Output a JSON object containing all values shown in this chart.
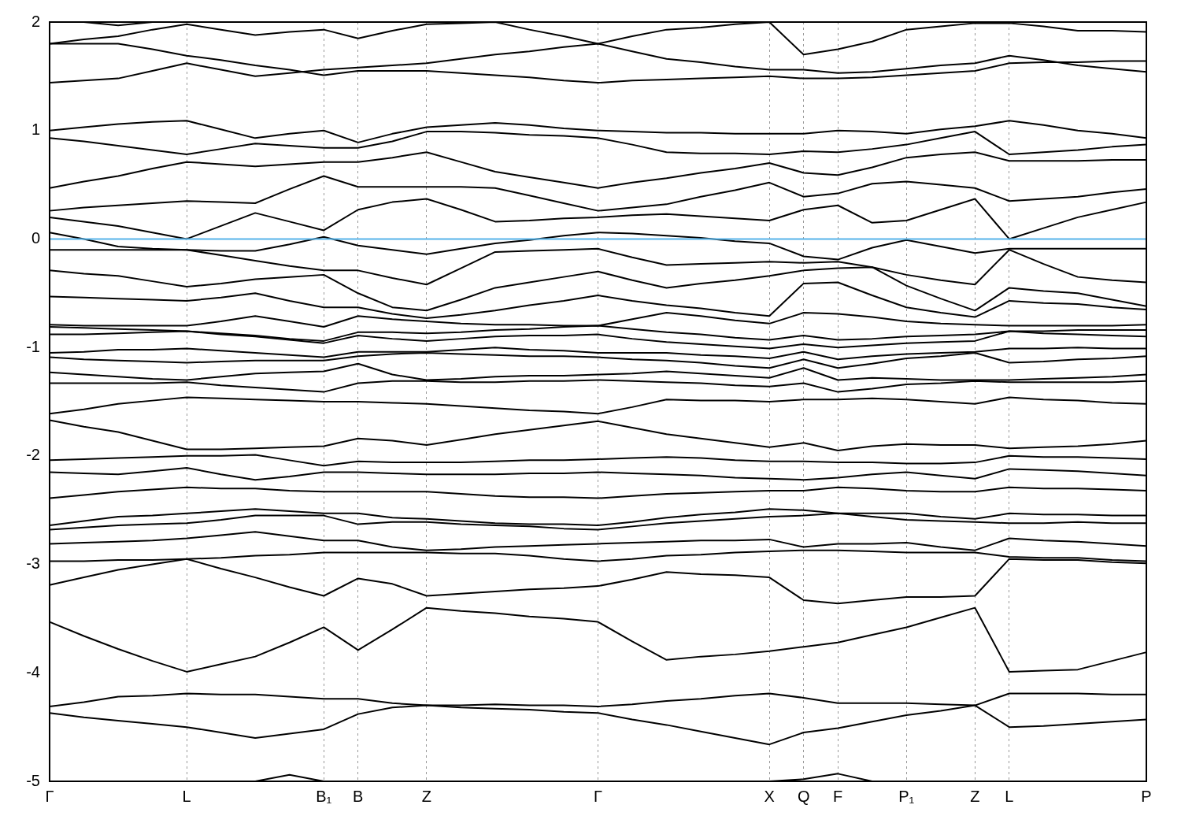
{
  "chart_data": {
    "type": "line",
    "categories": [
      "Γ",
      null,
      null,
      null,
      "L",
      null,
      null,
      null,
      "B₁",
      "B",
      null,
      "Z",
      null,
      null,
      null,
      null,
      "Γ",
      null,
      null,
      null,
      null,
      "X",
      "Q",
      "F",
      null,
      "P₁",
      null,
      "Z",
      "L",
      null,
      null,
      null,
      "P"
    ],
    "ylim": [
      -5,
      2
    ],
    "yticks": [
      -5,
      -4,
      -3,
      -2,
      -1,
      0,
      1,
      2
    ],
    "grid": "x",
    "ref_lines": [
      {
        "axis": "y",
        "value": 0,
        "color": "#56b4e9"
      }
    ],
    "series": [
      {
        "color": "#000000",
        "values": [
          null,
          2.0,
          1.97,
          2.0,
          null,
          null,
          null,
          null,
          null,
          null,
          null,
          null,
          null,
          null,
          null,
          null,
          null,
          null,
          null,
          null,
          null,
          null,
          null,
          null,
          null,
          null,
          null,
          null,
          null,
          null,
          null,
          null,
          null
        ]
      },
      {
        "color": "#000000",
        "values": [
          1.8,
          1.84,
          1.87,
          1.93,
          1.98,
          1.93,
          1.88,
          1.91,
          1.93,
          1.85,
          1.92,
          1.98,
          1.99,
          2.0,
          1.93,
          1.87,
          1.8,
          1.87,
          1.93,
          1.95,
          1.98,
          2.0,
          1.7,
          1.75,
          1.82,
          1.93,
          1.96,
          1.99,
          1.99,
          1.96,
          1.92,
          1.92,
          1.91
        ]
      },
      {
        "color": "#000000",
        "values": [
          1.8,
          1.8,
          1.8,
          1.75,
          1.69,
          1.65,
          1.6,
          1.56,
          1.51,
          1.55,
          1.55,
          1.55,
          1.53,
          1.51,
          1.49,
          1.46,
          1.44,
          1.46,
          1.47,
          1.48,
          1.49,
          1.5,
          1.48,
          1.48,
          1.49,
          1.51,
          1.53,
          1.55,
          1.62,
          1.63,
          1.63,
          1.64,
          1.64
        ]
      },
      {
        "color": "#000000",
        "values": [
          1.44,
          1.46,
          1.48,
          1.55,
          1.62,
          1.56,
          1.5,
          1.53,
          1.56,
          1.58,
          1.6,
          1.62,
          1.66,
          1.7,
          1.73,
          1.77,
          1.8,
          1.73,
          1.66,
          1.63,
          1.59,
          1.56,
          1.56,
          1.53,
          1.54,
          1.57,
          1.6,
          1.62,
          1.69,
          1.65,
          1.6,
          1.57,
          1.54
        ]
      },
      {
        "color": "#000000",
        "values": [
          1.0,
          1.03,
          1.06,
          1.08,
          1.09,
          1.01,
          0.93,
          0.97,
          1.0,
          0.89,
          0.97,
          1.03,
          1.05,
          1.07,
          1.05,
          1.02,
          1.0,
          0.99,
          0.98,
          0.98,
          0.97,
          0.97,
          0.97,
          1.0,
          0.99,
          0.97,
          1.01,
          1.04,
          1.09,
          1.05,
          1.0,
          0.97,
          0.93
        ]
      },
      {
        "color": "#000000",
        "values": [
          0.93,
          0.9,
          0.86,
          0.82,
          0.78,
          0.83,
          0.88,
          0.86,
          0.84,
          0.84,
          0.9,
          0.99,
          0.99,
          0.98,
          0.96,
          0.95,
          0.93,
          0.87,
          0.8,
          0.79,
          0.79,
          0.78,
          0.81,
          0.8,
          0.83,
          0.87,
          0.93,
          0.99,
          0.78,
          0.8,
          0.82,
          0.85,
          0.87
        ]
      },
      {
        "color": "#000000",
        "values": [
          0.47,
          0.53,
          0.58,
          0.65,
          0.71,
          0.69,
          0.67,
          0.69,
          0.71,
          0.71,
          0.75,
          0.8,
          0.71,
          0.62,
          0.57,
          0.52,
          0.47,
          0.52,
          0.56,
          0.61,
          0.65,
          0.7,
          0.61,
          0.59,
          0.66,
          0.75,
          0.78,
          0.8,
          0.72,
          0.72,
          0.72,
          0.73,
          0.73
        ]
      },
      {
        "color": "#000000",
        "values": [
          0.26,
          0.29,
          0.31,
          0.33,
          0.35,
          0.34,
          0.33,
          0.46,
          0.58,
          0.48,
          0.48,
          0.48,
          0.48,
          0.47,
          0.4,
          0.33,
          0.26,
          0.29,
          0.32,
          0.39,
          0.45,
          0.52,
          0.39,
          0.42,
          0.51,
          0.53,
          0.5,
          0.47,
          0.35,
          0.37,
          0.39,
          0.43,
          0.46
        ]
      },
      {
        "color": "#000000",
        "values": [
          0.2,
          0.16,
          0.12,
          0.06,
          0.0,
          0.12,
          0.24,
          0.16,
          0.08,
          0.27,
          0.34,
          0.37,
          0.27,
          0.16,
          0.17,
          0.19,
          0.2,
          0.22,
          0.23,
          0.21,
          0.19,
          0.17,
          0.27,
          0.31,
          0.15,
          0.17,
          0.27,
          0.37,
          0.0,
          0.1,
          0.2,
          0.27,
          0.34
        ]
      },
      {
        "color": "#000000",
        "values": [
          0.06,
          0.0,
          -0.07,
          -0.09,
          -0.1,
          -0.11,
          -0.11,
          -0.05,
          0.02,
          -0.06,
          -0.1,
          -0.14,
          -0.09,
          -0.04,
          -0.01,
          0.03,
          0.06,
          0.05,
          0.03,
          0.01,
          -0.02,
          -0.04,
          -0.16,
          -0.19,
          -0.08,
          -0.01,
          -0.07,
          -0.13,
          -0.09,
          -0.09,
          -0.09,
          -0.09,
          -0.09
        ]
      },
      {
        "color": "#000000",
        "values": [
          -0.1,
          -0.1,
          -0.1,
          -0.1,
          -0.1,
          -0.15,
          -0.2,
          -0.25,
          -0.29,
          -0.29,
          -0.36,
          -0.42,
          -0.27,
          -0.12,
          -0.11,
          -0.1,
          -0.09,
          -0.17,
          -0.24,
          -0.23,
          -0.22,
          -0.21,
          -0.22,
          -0.21,
          -0.26,
          -0.33,
          -0.38,
          -0.42,
          -0.1,
          -0.23,
          -0.35,
          -0.38,
          -0.4
        ]
      },
      {
        "color": "#000000",
        "values": [
          -0.29,
          -0.32,
          -0.34,
          -0.39,
          -0.44,
          -0.41,
          -0.37,
          -0.35,
          -0.33,
          -0.5,
          -0.63,
          -0.66,
          -0.56,
          -0.45,
          -0.4,
          -0.35,
          -0.3,
          -0.38,
          -0.45,
          -0.41,
          -0.38,
          -0.34,
          -0.29,
          -0.27,
          -0.26,
          -0.43,
          -0.55,
          -0.66,
          -0.45,
          -0.48,
          -0.5,
          -0.56,
          -0.62
        ]
      },
      {
        "color": "#000000",
        "values": [
          -0.53,
          -0.54,
          -0.55,
          -0.56,
          -0.57,
          -0.54,
          -0.5,
          -0.57,
          -0.63,
          -0.63,
          -0.69,
          -0.73,
          -0.7,
          -0.66,
          -0.61,
          -0.57,
          -0.52,
          -0.57,
          -0.61,
          -0.64,
          -0.68,
          -0.71,
          -0.41,
          -0.4,
          -0.52,
          -0.63,
          -0.68,
          -0.72,
          -0.57,
          -0.59,
          -0.6,
          -0.63,
          -0.65
        ]
      },
      {
        "color": "#000000",
        "values": [
          -0.79,
          -0.8,
          -0.8,
          -0.8,
          -0.8,
          -0.76,
          -0.71,
          -0.76,
          -0.81,
          -0.71,
          -0.74,
          -0.76,
          -0.78,
          -0.79,
          -0.79,
          -0.8,
          -0.8,
          -0.74,
          -0.68,
          -0.71,
          -0.75,
          -0.78,
          -0.68,
          -0.69,
          -0.72,
          -0.76,
          -0.78,
          -0.79,
          -0.8,
          -0.8,
          -0.8,
          -0.8,
          -0.79
        ]
      },
      {
        "color": "#000000",
        "values": [
          -0.81,
          -0.82,
          -0.83,
          -0.84,
          -0.85,
          -0.87,
          -0.89,
          -0.92,
          -0.94,
          -0.86,
          -0.86,
          -0.87,
          -0.86,
          -0.84,
          -0.83,
          -0.81,
          -0.8,
          -0.83,
          -0.86,
          -0.88,
          -0.91,
          -0.93,
          -0.89,
          -0.93,
          -0.92,
          -0.9,
          -0.89,
          -0.88,
          -0.85,
          -0.85,
          -0.84,
          -0.84,
          -0.84
        ]
      },
      {
        "color": "#000000",
        "values": [
          -0.88,
          -0.88,
          -0.87,
          -0.86,
          -0.85,
          -0.88,
          -0.9,
          -0.93,
          -0.96,
          -0.89,
          -0.92,
          -0.94,
          -0.92,
          -0.9,
          -0.89,
          -0.89,
          -0.88,
          -0.92,
          -0.95,
          -0.97,
          -0.99,
          -1.01,
          -0.97,
          -1.0,
          -0.98,
          -0.96,
          -0.95,
          -0.94,
          -0.85,
          -0.87,
          -0.88,
          -0.89,
          -0.9
        ]
      },
      {
        "color": "#000000",
        "values": [
          -1.05,
          -1.04,
          -1.02,
          -1.02,
          -1.01,
          -1.03,
          -1.05,
          -1.07,
          -1.09,
          -1.04,
          -1.04,
          -1.04,
          -1.02,
          -1.0,
          -1.02,
          -1.03,
          -1.05,
          -1.05,
          -1.05,
          -1.07,
          -1.08,
          -1.1,
          -1.04,
          -1.11,
          -1.08,
          -1.06,
          -1.05,
          -1.04,
          -1.01,
          -1.01,
          -1.0,
          -1.01,
          -1.01
        ]
      },
      {
        "color": "#000000",
        "values": [
          -1.09,
          -1.11,
          -1.12,
          -1.13,
          -1.14,
          -1.13,
          -1.12,
          -1.12,
          -1.12,
          -1.08,
          -1.06,
          -1.05,
          -1.06,
          -1.07,
          -1.08,
          -1.08,
          -1.09,
          -1.11,
          -1.12,
          -1.14,
          -1.17,
          -1.19,
          -1.11,
          -1.19,
          -1.15,
          -1.1,
          -1.08,
          -1.05,
          -1.14,
          -1.13,
          -1.11,
          -1.1,
          -1.08
        ]
      },
      {
        "color": "#000000",
        "values": [
          -1.23,
          -1.25,
          -1.27,
          -1.29,
          -1.3,
          -1.27,
          -1.24,
          -1.23,
          -1.22,
          -1.15,
          -1.25,
          -1.3,
          -1.29,
          -1.27,
          -1.26,
          -1.26,
          -1.25,
          -1.24,
          -1.22,
          -1.24,
          -1.26,
          -1.28,
          -1.19,
          -1.3,
          -1.28,
          -1.29,
          -1.3,
          -1.3,
          -1.3,
          -1.29,
          -1.28,
          -1.27,
          -1.25
        ]
      },
      {
        "color": "#000000",
        "values": [
          -1.33,
          -1.33,
          -1.33,
          -1.33,
          -1.32,
          -1.35,
          -1.37,
          -1.39,
          -1.41,
          -1.33,
          -1.31,
          -1.31,
          -1.32,
          -1.32,
          -1.31,
          -1.31,
          -1.3,
          -1.31,
          -1.32,
          -1.33,
          -1.35,
          -1.36,
          -1.33,
          -1.41,
          -1.38,
          -1.34,
          -1.33,
          -1.31,
          -1.32,
          -1.32,
          -1.32,
          -1.32,
          -1.31
        ]
      },
      {
        "color": "#000000",
        "values": [
          -1.61,
          -1.57,
          -1.52,
          -1.49,
          -1.46,
          -1.47,
          -1.48,
          -1.49,
          -1.5,
          -1.5,
          -1.51,
          -1.52,
          -1.54,
          -1.56,
          -1.58,
          -1.59,
          -1.61,
          -1.55,
          -1.48,
          -1.49,
          -1.49,
          -1.5,
          -1.48,
          -1.48,
          -1.47,
          -1.48,
          -1.5,
          -1.52,
          -1.46,
          -1.48,
          -1.49,
          -1.51,
          -1.52
        ]
      },
      {
        "color": "#000000",
        "values": [
          -1.67,
          -1.73,
          -1.78,
          -1.86,
          -1.94,
          -1.94,
          -1.93,
          -1.92,
          -1.91,
          -1.84,
          -1.86,
          -1.9,
          -1.85,
          -1.8,
          -1.76,
          -1.72,
          -1.68,
          -1.74,
          -1.8,
          -1.84,
          -1.88,
          -1.92,
          -1.88,
          -1.95,
          -1.91,
          -1.89,
          -1.9,
          -1.9,
          -1.93,
          -1.92,
          -1.91,
          -1.89,
          -1.86
        ]
      },
      {
        "color": "#000000",
        "values": [
          -2.04,
          -2.03,
          -2.02,
          -2.01,
          -2.0,
          -2.0,
          -1.99,
          -2.04,
          -2.09,
          -2.05,
          -2.06,
          -2.06,
          -2.06,
          -2.05,
          -2.04,
          -2.04,
          -2.03,
          -2.02,
          -2.01,
          -2.02,
          -2.04,
          -2.05,
          -2.05,
          -2.06,
          -2.06,
          -2.07,
          -2.07,
          -2.06,
          -2.0,
          -2.01,
          -2.01,
          -2.02,
          -2.03
        ]
      },
      {
        "color": "#000000",
        "values": [
          -2.15,
          -2.16,
          -2.17,
          -2.14,
          -2.11,
          -2.17,
          -2.22,
          -2.19,
          -2.15,
          -2.15,
          -2.16,
          -2.17,
          -2.17,
          -2.17,
          -2.16,
          -2.16,
          -2.15,
          -2.16,
          -2.17,
          -2.18,
          -2.2,
          -2.21,
          -2.22,
          -2.2,
          -2.17,
          -2.15,
          -2.18,
          -2.21,
          -2.12,
          -2.13,
          -2.14,
          -2.16,
          -2.18
        ]
      },
      {
        "color": "#000000",
        "values": [
          -2.39,
          -2.36,
          -2.33,
          -2.31,
          -2.29,
          -2.3,
          -2.3,
          -2.32,
          -2.33,
          -2.33,
          -2.33,
          -2.33,
          -2.35,
          -2.37,
          -2.38,
          -2.38,
          -2.39,
          -2.37,
          -2.35,
          -2.34,
          -2.33,
          -2.32,
          -2.32,
          -2.29,
          -2.3,
          -2.32,
          -2.33,
          -2.33,
          -2.29,
          -2.3,
          -2.3,
          -2.31,
          -2.32
        ]
      },
      {
        "color": "#000000",
        "values": [
          -2.64,
          -2.6,
          -2.56,
          -2.55,
          -2.53,
          -2.51,
          -2.49,
          -2.51,
          -2.53,
          -2.53,
          -2.57,
          -2.58,
          -2.6,
          -2.62,
          -2.63,
          -2.63,
          -2.64,
          -2.61,
          -2.57,
          -2.54,
          -2.52,
          -2.49,
          -2.5,
          -2.53,
          -2.53,
          -2.53,
          -2.56,
          -2.58,
          -2.53,
          -2.54,
          -2.54,
          -2.55,
          -2.55
        ]
      },
      {
        "color": "#000000",
        "values": [
          -2.68,
          -2.66,
          -2.64,
          -2.63,
          -2.62,
          -2.59,
          -2.55,
          -2.55,
          -2.55,
          -2.63,
          -2.61,
          -2.61,
          -2.63,
          -2.64,
          -2.65,
          -2.67,
          -2.68,
          -2.65,
          -2.62,
          -2.6,
          -2.58,
          -2.56,
          -2.55,
          -2.53,
          -2.56,
          -2.59,
          -2.6,
          -2.61,
          -2.62,
          -2.62,
          -2.61,
          -2.62,
          -2.62
        ]
      },
      {
        "color": "#000000",
        "values": [
          -2.81,
          -2.8,
          -2.79,
          -2.78,
          -2.76,
          -2.73,
          -2.7,
          -2.74,
          -2.78,
          -2.78,
          -2.84,
          -2.87,
          -2.86,
          -2.84,
          -2.83,
          -2.82,
          -2.81,
          -2.8,
          -2.79,
          -2.78,
          -2.78,
          -2.77,
          -2.84,
          -2.81,
          -2.81,
          -2.8,
          -2.84,
          -2.87,
          -2.76,
          -2.78,
          -2.79,
          -2.81,
          -2.83
        ]
      },
      {
        "color": "#000000",
        "values": [
          -2.97,
          -2.97,
          -2.96,
          -2.96,
          -2.95,
          -2.94,
          -2.92,
          -2.91,
          -2.89,
          -2.89,
          -2.89,
          -2.89,
          -2.9,
          -2.9,
          -2.92,
          -2.95,
          -2.97,
          -2.95,
          -2.92,
          -2.91,
          -2.89,
          -2.88,
          -2.87,
          -2.87,
          -2.88,
          -2.89,
          -2.89,
          -2.89,
          -2.93,
          -2.94,
          -2.94,
          -2.96,
          -2.97
        ]
      },
      {
        "color": "#000000",
        "values": [
          -3.19,
          -3.12,
          -3.05,
          -3.0,
          -2.95,
          -3.04,
          -3.12,
          -3.21,
          -3.29,
          -3.13,
          -3.18,
          -3.29,
          -3.27,
          -3.25,
          -3.23,
          -3.22,
          -3.2,
          -3.14,
          -3.07,
          -3.09,
          -3.1,
          -3.12,
          -3.33,
          -3.36,
          -3.33,
          -3.3,
          -3.3,
          -3.29,
          -2.95,
          -2.96,
          -2.96,
          -2.98,
          -2.99
        ]
      },
      {
        "color": "#000000",
        "values": [
          -3.53,
          -3.66,
          -3.78,
          -3.89,
          -3.99,
          -3.92,
          -3.85,
          -3.72,
          -3.58,
          -3.79,
          -3.6,
          -3.4,
          -3.43,
          -3.45,
          -3.48,
          -3.5,
          -3.53,
          -3.71,
          -3.88,
          -3.85,
          -3.83,
          -3.8,
          -3.76,
          -3.72,
          -3.65,
          -3.58,
          -3.49,
          -3.4,
          -3.99,
          -3.98,
          -3.97,
          -3.89,
          -3.81
        ]
      },
      {
        "color": "#000000",
        "values": [
          -4.31,
          -4.27,
          -4.22,
          -4.21,
          -4.19,
          -4.2,
          -4.2,
          -4.22,
          -4.24,
          -4.24,
          -4.28,
          -4.3,
          -4.3,
          -4.29,
          -4.3,
          -4.3,
          -4.31,
          -4.29,
          -4.26,
          -4.24,
          -4.21,
          -4.19,
          -4.23,
          -4.28,
          -4.28,
          -4.28,
          -4.29,
          -4.3,
          -4.19,
          -4.19,
          -4.19,
          -4.2,
          -4.2
        ]
      },
      {
        "color": "#000000",
        "values": [
          -4.37,
          -4.41,
          -4.44,
          -4.47,
          -4.5,
          -4.55,
          -4.6,
          -4.56,
          -4.52,
          -4.38,
          -4.32,
          -4.3,
          -4.32,
          -4.33,
          -4.34,
          -4.36,
          -4.37,
          -4.43,
          -4.48,
          -4.54,
          -4.6,
          -4.66,
          -4.55,
          -4.51,
          -4.45,
          -4.39,
          -4.35,
          -4.3,
          -4.5,
          -4.49,
          -4.47,
          -4.45,
          -4.43
        ]
      },
      {
        "color": "#000000",
        "values": [
          null,
          null,
          null,
          null,
          null,
          null,
          -5.0,
          -4.94,
          -5.0,
          null,
          null,
          null,
          null,
          null,
          null,
          null,
          null,
          null,
          null,
          null,
          null,
          null,
          null,
          null,
          null,
          null,
          null,
          null,
          null,
          null,
          null,
          null,
          null
        ]
      },
      {
        "color": "#000000",
        "values": [
          null,
          null,
          null,
          null,
          null,
          null,
          null,
          null,
          null,
          null,
          null,
          null,
          null,
          null,
          null,
          null,
          null,
          null,
          null,
          null,
          null,
          -5.0,
          -4.98,
          -4.93,
          -5.0,
          null,
          null,
          null,
          null,
          null,
          null,
          null,
          null
        ]
      }
    ]
  }
}
